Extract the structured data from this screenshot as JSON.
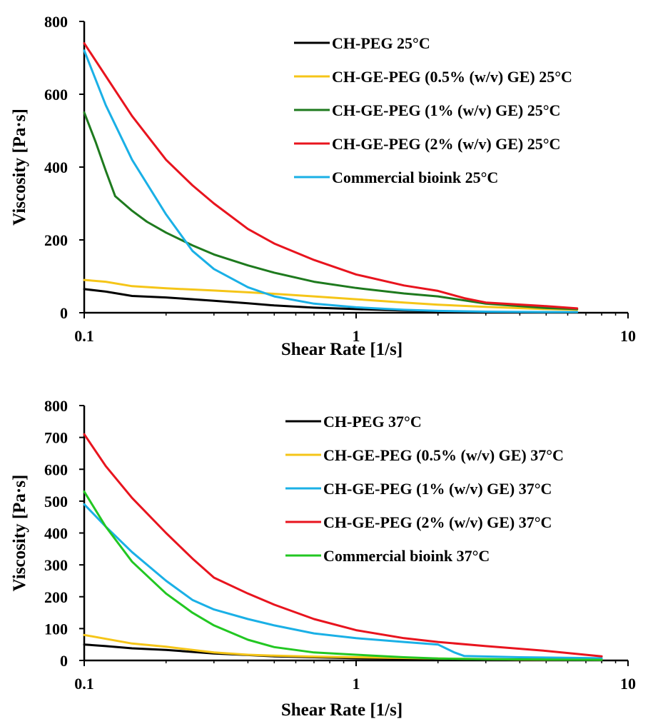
{
  "chart_data": [
    {
      "type": "line",
      "xscale": "log",
      "xlabel": "Shear Rate [1/s]",
      "ylabel": "Viscosity [Pa·s]",
      "xlim": [
        0.1,
        10
      ],
      "ylim": [
        0,
        800
      ],
      "xticks": [
        "0.1",
        "1",
        "10"
      ],
      "yticks": [
        "0",
        "200",
        "400",
        "600",
        "800"
      ],
      "grid": false,
      "legend": "top-right",
      "series": [
        {
          "name": "CH-PEG 25°C",
          "color": "#000000",
          "x": [
            0.1,
            0.12,
            0.15,
            0.2,
            0.3,
            0.4,
            0.5,
            0.7,
            1,
            1.5,
            2,
            3,
            5,
            6.5
          ],
          "y": [
            65,
            58,
            46,
            42,
            33,
            26,
            20,
            14,
            10,
            6,
            4,
            2,
            1,
            1
          ]
        },
        {
          "name": "CH-GE-PEG (0.5% (w/v) GE) 25°C",
          "color": "#f5c518",
          "x": [
            0.1,
            0.12,
            0.15,
            0.2,
            0.3,
            0.4,
            0.5,
            0.7,
            1,
            1.5,
            2,
            3,
            5,
            6.5
          ],
          "y": [
            90,
            85,
            73,
            67,
            61,
            56,
            52,
            45,
            37,
            28,
            22,
            16,
            10,
            8
          ]
        },
        {
          "name": "CH-GE-PEG (1% (w/v) GE) 25°C",
          "color": "#1e7a1e",
          "x": [
            0.1,
            0.11,
            0.12,
            0.13,
            0.15,
            0.17,
            0.2,
            0.25,
            0.3,
            0.4,
            0.5,
            0.7,
            1,
            1.5,
            2,
            3,
            5,
            6.5
          ],
          "y": [
            550,
            470,
            390,
            320,
            280,
            250,
            220,
            185,
            160,
            130,
            110,
            85,
            68,
            53,
            45,
            25,
            13,
            10
          ]
        },
        {
          "name": "CH-GE-PEG (2% (w/v) GE) 25°C",
          "color": "#e8141e",
          "x": [
            0.1,
            0.12,
            0.15,
            0.2,
            0.25,
            0.3,
            0.4,
            0.5,
            0.7,
            1,
            1.5,
            2,
            2.5,
            3,
            5,
            6.5
          ],
          "y": [
            740,
            650,
            540,
            420,
            350,
            300,
            230,
            190,
            145,
            105,
            75,
            60,
            40,
            28,
            18,
            12
          ]
        },
        {
          "name": "Commercial bioink 25°C",
          "color": "#1ab0e6",
          "x": [
            0.1,
            0.12,
            0.15,
            0.2,
            0.25,
            0.3,
            0.4,
            0.5,
            0.7,
            1,
            1.5,
            2,
            3,
            5,
            6.5
          ],
          "y": [
            720,
            570,
            420,
            270,
            170,
            120,
            70,
            45,
            25,
            15,
            8,
            5,
            3,
            2,
            2
          ]
        }
      ]
    },
    {
      "type": "line",
      "xscale": "log",
      "xlabel": "Shear Rate [1/s]",
      "ylabel": "Viscosity [Pa·s]",
      "xlim": [
        0.1,
        10
      ],
      "ylim": [
        0,
        800
      ],
      "xticks": [
        "0.1",
        "1",
        "10"
      ],
      "yticks": [
        "0",
        "100",
        "200",
        "300",
        "400",
        "500",
        "600",
        "700",
        "800"
      ],
      "grid": false,
      "legend": "top-right",
      "series": [
        {
          "name": "CH-PEG 37°C",
          "color": "#000000",
          "x": [
            0.1,
            0.12,
            0.15,
            0.2,
            0.3,
            0.4,
            0.5,
            0.7,
            1,
            2,
            4,
            8
          ],
          "y": [
            50,
            45,
            38,
            33,
            22,
            17,
            13,
            10,
            7,
            4,
            2,
            2
          ]
        },
        {
          "name": "CH-GE-PEG (0.5% (w/v) GE) 37°C",
          "color": "#f5c518",
          "x": [
            0.1,
            0.12,
            0.15,
            0.2,
            0.3,
            0.4,
            0.5,
            0.7,
            1,
            2,
            4,
            8
          ],
          "y": [
            80,
            68,
            53,
            43,
            25,
            18,
            15,
            12,
            10,
            6,
            3,
            2
          ]
        },
        {
          "name": "CH-GE-PEG (1% (w/v) GE) 37°C",
          "color": "#1ab0e6",
          "x": [
            0.1,
            0.12,
            0.15,
            0.2,
            0.25,
            0.3,
            0.4,
            0.5,
            0.7,
            1,
            1.5,
            2,
            2.3,
            2.5,
            4,
            8
          ],
          "y": [
            490,
            420,
            340,
            250,
            190,
            160,
            130,
            110,
            85,
            70,
            58,
            50,
            25,
            14,
            10,
            7
          ]
        },
        {
          "name": "CH-GE-PEG (2% (w/v) GE) 37°C",
          "color": "#e8141e",
          "x": [
            0.1,
            0.12,
            0.15,
            0.2,
            0.25,
            0.3,
            0.4,
            0.5,
            0.7,
            1,
            1.5,
            2,
            3,
            5,
            8
          ],
          "y": [
            710,
            610,
            510,
            400,
            320,
            260,
            210,
            175,
            130,
            95,
            70,
            58,
            45,
            30,
            13
          ]
        },
        {
          "name": "Commercial bioink 37°C",
          "color": "#22c722",
          "x": [
            0.1,
            0.12,
            0.15,
            0.2,
            0.25,
            0.3,
            0.4,
            0.5,
            0.7,
            1,
            1.5,
            2,
            3,
            5,
            8
          ],
          "y": [
            530,
            420,
            310,
            210,
            150,
            110,
            65,
            42,
            25,
            18,
            10,
            6,
            4,
            3,
            2
          ]
        }
      ]
    }
  ]
}
